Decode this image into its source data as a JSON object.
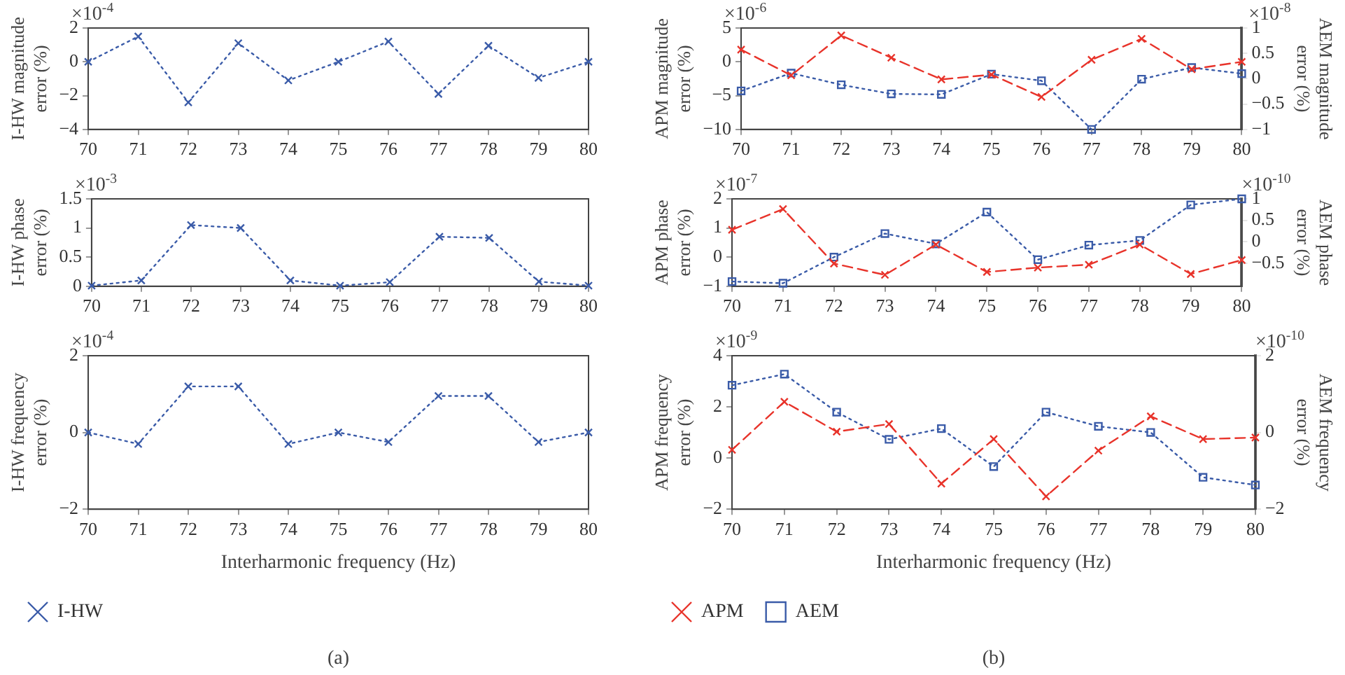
{
  "chart_data": [
    {
      "type": "line",
      "ylabel": "I-HW magnitude error (%)",
      "x": [
        70,
        71,
        72,
        73,
        74,
        75,
        76,
        77,
        78,
        79,
        80
      ],
      "xlim": [
        70,
        80
      ],
      "xticks": [
        70,
        71,
        72,
        73,
        74,
        75,
        76,
        77,
        78,
        79,
        80
      ],
      "ylim": [
        -4,
        2
      ],
      "yticks": [
        -4,
        -2,
        0,
        2
      ],
      "grid": false,
      "legend": false,
      "annotations": [
        "×10$^{-4}$"
      ],
      "series": [
        {
          "color": "#3a5ba8",
          "marker": "cross",
          "line_style": "dotted",
          "values": [
            0,
            1.5,
            -2.4,
            1.1,
            -1.1,
            0,
            1.2,
            -1.9,
            0.95,
            -0.95,
            0
          ]
        }
      ]
    },
    {
      "type": "line",
      "ylabel": "I-HW phase error (%)",
      "x": [
        70,
        71,
        72,
        73,
        74,
        75,
        76,
        77,
        78,
        79,
        80
      ],
      "xlim": [
        70,
        80
      ],
      "xticks": [
        70,
        71,
        72,
        73,
        74,
        75,
        76,
        77,
        78,
        79,
        80
      ],
      "ylim": [
        0,
        1.5
      ],
      "yticks": [
        0,
        0.5,
        1,
        1.5
      ],
      "grid": false,
      "legend": false,
      "annotations": [
        "×10$^{-3}$"
      ],
      "series": [
        {
          "color": "#3a5ba8",
          "marker": "cross",
          "line_style": "dotted",
          "values": [
            0.01,
            0.1,
            1.05,
            1.0,
            0.1,
            0.01,
            0.07,
            0.85,
            0.83,
            0.08,
            0.01
          ]
        }
      ]
    },
    {
      "type": "line",
      "xlabel": "Interharmonic frequency (Hz)",
      "ylabel": "I-HW frequency error (%)",
      "x": [
        70,
        71,
        72,
        73,
        74,
        75,
        76,
        77,
        78,
        79,
        80
      ],
      "xlim": [
        70,
        80
      ],
      "xticks": [
        70,
        71,
        72,
        73,
        74,
        75,
        76,
        77,
        78,
        79,
        80
      ],
      "ylim": [
        -2,
        2
      ],
      "yticks": [
        -2,
        0,
        2
      ],
      "grid": false,
      "legend": "bottom",
      "annotations": [
        "×10$^{-4}$",
        "(a)"
      ],
      "series": [
        {
          "name": "I-HW",
          "color": "#3a5ba8",
          "marker": "cross",
          "line_style": "dotted",
          "values": [
            0,
            -0.3,
            1.2,
            1.2,
            -0.3,
            0,
            -0.25,
            0.95,
            0.95,
            -0.25,
            0
          ]
        }
      ]
    },
    {
      "type": "line",
      "ylabel": "APM magnitude error (%)",
      "y2label": "AEM magnitude error (%)",
      "x": [
        70,
        71,
        72,
        73,
        74,
        75,
        76,
        77,
        78,
        79,
        80
      ],
      "xlim": [
        70,
        80
      ],
      "xticks": [
        70,
        71,
        72,
        73,
        74,
        75,
        76,
        77,
        78,
        79,
        80
      ],
      "ylim": [
        -10,
        5
      ],
      "yticks": [
        -10,
        -5,
        0,
        5
      ],
      "y2lim": [
        -1,
        1
      ],
      "y2ticks": [
        -1,
        -0.5,
        0,
        0.5,
        1
      ],
      "grid": false,
      "legend": false,
      "annotations": [
        "×10$^{-6}$",
        "×10$^{-8}$"
      ],
      "series": [
        {
          "color": "#e8332a",
          "marker": "cross",
          "line_style": "dashed",
          "values": [
            1.8,
            -2.0,
            3.9,
            0.6,
            -2.6,
            -1.9,
            -5.2,
            0.3,
            3.4,
            -1.1,
            0
          ]
        },
        {
          "color": "#3a5ba8",
          "marker": "square",
          "line_style": "dotted",
          "axis": "y2",
          "values": [
            -0.24,
            0.11,
            -0.12,
            -0.3,
            -0.31,
            0.09,
            -0.04,
            -1.0,
            -0.01,
            0.22,
            0.1
          ]
        }
      ]
    },
    {
      "type": "line",
      "ylabel": "APM phase error (%)",
      "y2label": "AEM phase error (%)",
      "x": [
        70,
        71,
        72,
        73,
        74,
        75,
        76,
        77,
        78,
        79,
        80
      ],
      "xlim": [
        70,
        80
      ],
      "xticks": [
        70,
        71,
        72,
        73,
        74,
        75,
        76,
        77,
        78,
        79,
        80
      ],
      "ylim": [
        -1,
        2
      ],
      "yticks": [
        -1,
        0,
        1,
        2
      ],
      "y2lim": [
        -1.04,
        1
      ],
      "y2ticks": [
        -0.5,
        0,
        0.5,
        1
      ],
      "grid": false,
      "legend": false,
      "annotations": [
        "×10$^{-7}$",
        "×10$^{-10}$"
      ],
      "series": [
        {
          "color": "#e8332a",
          "marker": "cross",
          "line_style": "dashed",
          "values": [
            0.94,
            1.65,
            -0.22,
            -0.61,
            0.43,
            -0.51,
            -0.36,
            -0.26,
            0.43,
            -0.58,
            -0.1
          ]
        },
        {
          "color": "#3a5ba8",
          "marker": "square",
          "line_style": "dotted",
          "axis": "y2",
          "values": [
            -0.93,
            -0.97,
            -0.36,
            0.19,
            -0.05,
            0.69,
            -0.42,
            -0.08,
            0.03,
            0.86,
            1.0
          ]
        }
      ]
    },
    {
      "type": "line",
      "xlabel": "Interharmonic frequency (Hz)",
      "ylabel": "APM frequency error (%)",
      "y2label": "AEM frequency error (%)",
      "x": [
        70,
        71,
        72,
        73,
        74,
        75,
        76,
        77,
        78,
        79,
        80
      ],
      "xlim": [
        70,
        80
      ],
      "xticks": [
        70,
        71,
        72,
        73,
        74,
        75,
        76,
        77,
        78,
        79,
        80
      ],
      "ylim": [
        -2,
        4
      ],
      "yticks": [
        -2,
        0,
        2,
        4
      ],
      "y2lim": [
        -2,
        2
      ],
      "y2ticks": [
        -2,
        0,
        2
      ],
      "grid": false,
      "legend": "bottom",
      "annotations": [
        "×10$^{-9}$",
        "×10$^{-10}$",
        "(b)"
      ],
      "series": [
        {
          "name": "APM",
          "color": "#e8332a",
          "marker": "cross",
          "line_style": "dashed",
          "values": [
            0.32,
            2.2,
            1.03,
            1.33,
            -1.0,
            0.74,
            -1.5,
            0.29,
            1.63,
            0.74,
            0.8
          ]
        },
        {
          "name": "AEM",
          "color": "#3a5ba8",
          "marker": "square",
          "line_style": "dotted",
          "axis": "y2",
          "values": [
            1.23,
            1.52,
            0.53,
            -0.18,
            0.1,
            -0.89,
            0.53,
            0.16,
            0.0,
            -1.17,
            -1.37
          ]
        }
      ]
    }
  ]
}
